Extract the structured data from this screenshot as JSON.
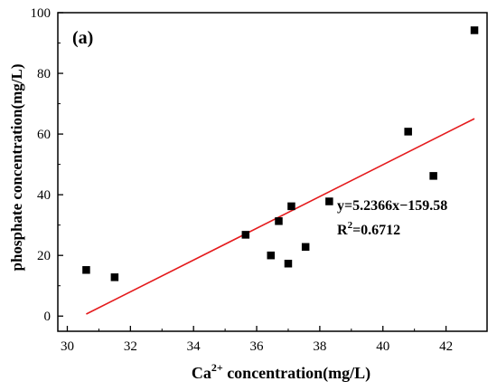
{
  "chart_data": {
    "type": "scatter",
    "panel_label": "(a)",
    "xlabel": {
      "prefix": "Ca",
      "sup": "2+",
      "suffix": " concentration(mg/L)"
    },
    "ylabel": "phosphate concentration(mg/L)",
    "xlim": [
      29.7,
      43.3
    ],
    "ylim": [
      -5,
      100
    ],
    "x_ticks": [
      30,
      32,
      34,
      36,
      38,
      40,
      42
    ],
    "y_ticks": [
      0,
      20,
      40,
      60,
      80,
      100
    ],
    "marker_color": "#000000",
    "line_color": "#e41a1c",
    "points": [
      {
        "x": 30.6,
        "y": 15.2
      },
      {
        "x": 31.5,
        "y": 12.8
      },
      {
        "x": 35.65,
        "y": 26.8
      },
      {
        "x": 36.45,
        "y": 20.0
      },
      {
        "x": 36.7,
        "y": 31.3
      },
      {
        "x": 37.0,
        "y": 17.3
      },
      {
        "x": 37.1,
        "y": 36.2
      },
      {
        "x": 37.55,
        "y": 22.8
      },
      {
        "x": 38.3,
        "y": 37.8
      },
      {
        "x": 40.8,
        "y": 60.8
      },
      {
        "x": 41.6,
        "y": 46.2
      },
      {
        "x": 42.9,
        "y": 94.2
      }
    ],
    "fit": {
      "slope": 5.2366,
      "intercept": -159.58,
      "x_range": [
        30.6,
        42.9
      ]
    },
    "annotation": {
      "equation": "y=5.2366x−159.58",
      "r2_prefix": "R",
      "r2_sup": "2",
      "r2_suffix": "=0.6712"
    }
  }
}
